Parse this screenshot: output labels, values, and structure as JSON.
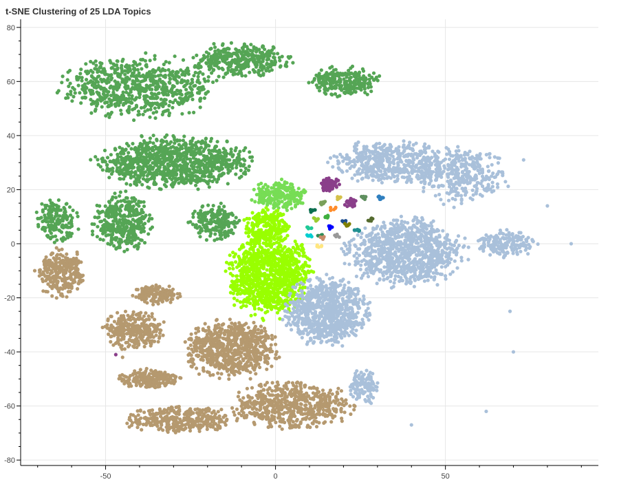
{
  "chart_data": {
    "type": "scatter",
    "title": "t-SNE Clustering of 25 LDA Topics",
    "xlabel": "",
    "ylabel": "",
    "xlim": [
      -75,
      95
    ],
    "ylim": [
      -82,
      83
    ],
    "x_ticks": [
      -50,
      0,
      50
    ],
    "y_ticks": [
      80,
      60,
      40,
      20,
      0,
      -20,
      -40,
      -60,
      -80
    ],
    "grid": true,
    "legend": "none",
    "point_count_note": "",
    "clusters": [
      {
        "color": "#55a555",
        "regions": [
          {
            "cx": -40,
            "cy": 58,
            "rx": 26,
            "ry": 13,
            "n": 700
          },
          {
            "cx": -10,
            "cy": 68,
            "rx": 16,
            "ry": 7,
            "n": 350
          },
          {
            "cx": 20,
            "cy": 60,
            "rx": 12,
            "ry": 6,
            "n": 260
          },
          {
            "cx": -30,
            "cy": 30,
            "rx": 26,
            "ry": 11,
            "n": 950
          },
          {
            "cx": -45,
            "cy": 8,
            "rx": 10,
            "ry": 12,
            "n": 380
          },
          {
            "cx": -64,
            "cy": 9,
            "rx": 7,
            "ry": 10,
            "n": 170
          },
          {
            "cx": -18,
            "cy": 8,
            "rx": 8,
            "ry": 8,
            "n": 200
          }
        ]
      },
      {
        "color": "#77dd55",
        "regions": [
          {
            "cx": 1,
            "cy": 18,
            "rx": 9,
            "ry": 6,
            "n": 230
          }
        ]
      },
      {
        "color": "#99ff00",
        "regions": [
          {
            "cx": -2,
            "cy": -12,
            "rx": 14,
            "ry": 17,
            "n": 1000
          },
          {
            "cx": -3,
            "cy": 6,
            "rx": 8,
            "ry": 8,
            "n": 240
          }
        ]
      },
      {
        "color": "#a9c0da",
        "regions": [
          {
            "cx": 35,
            "cy": 30,
            "rx": 22,
            "ry": 9,
            "n": 520
          },
          {
            "cx": 55,
            "cy": 25,
            "rx": 15,
            "ry": 12,
            "n": 300
          },
          {
            "cx": 38,
            "cy": -3,
            "rx": 20,
            "ry": 14,
            "n": 950
          },
          {
            "cx": 15,
            "cy": -25,
            "rx": 14,
            "ry": 14,
            "n": 800
          },
          {
            "cx": 68,
            "cy": 0,
            "rx": 10,
            "ry": 6,
            "n": 180
          },
          {
            "cx": 26,
            "cy": -53,
            "rx": 5,
            "ry": 7,
            "n": 110
          }
        ]
      },
      {
        "color": "#b5996f",
        "regions": [
          {
            "cx": -63,
            "cy": -11,
            "rx": 8,
            "ry": 10,
            "n": 280
          },
          {
            "cx": -13,
            "cy": -39,
            "rx": 16,
            "ry": 12,
            "n": 700
          },
          {
            "cx": -42,
            "cy": -32,
            "rx": 10,
            "ry": 8,
            "n": 280
          },
          {
            "cx": -35,
            "cy": -19,
            "rx": 8,
            "ry": 4,
            "n": 150
          },
          {
            "cx": -37,
            "cy": -50,
            "rx": 10,
            "ry": 4,
            "n": 200
          },
          {
            "cx": 5,
            "cy": -60,
            "rx": 20,
            "ry": 10,
            "n": 600
          },
          {
            "cx": -28,
            "cy": -65,
            "rx": 18,
            "ry": 6,
            "n": 340
          }
        ]
      },
      {
        "color": "#8a3f8a",
        "regions": [
          {
            "cx": 16,
            "cy": 22,
            "rx": 3,
            "ry": 3,
            "n": 80
          },
          {
            "cx": 22,
            "cy": 15,
            "rx": 2,
            "ry": 2,
            "n": 25
          }
        ]
      }
    ],
    "small_clusters": [
      {
        "color": "#0b6e4f",
        "x": 11,
        "y": 12,
        "n": 8
      },
      {
        "color": "#7aa05a",
        "x": 14,
        "y": 15,
        "n": 8
      },
      {
        "color": "#2f7fbf",
        "x": 31,
        "y": 17,
        "n": 10
      },
      {
        "color": "#5f8f5f",
        "x": 26,
        "y": 17,
        "n": 8
      },
      {
        "color": "#d4c14a",
        "x": 19,
        "y": 17,
        "n": 6
      },
      {
        "color": "#ff8c2a",
        "x": 17,
        "y": 13,
        "n": 6
      },
      {
        "color": "#1f4f8f",
        "x": 20,
        "y": 8,
        "n": 6
      },
      {
        "color": "#3faf3f",
        "x": 15,
        "y": 10,
        "n": 6
      },
      {
        "color": "#9acd32",
        "x": 12,
        "y": 9,
        "n": 6
      },
      {
        "color": "#20c997",
        "x": 10,
        "y": 6,
        "n": 6
      },
      {
        "color": "#0000ff",
        "x": 16,
        "y": 6,
        "n": 8
      },
      {
        "color": "#00ced1",
        "x": 10,
        "y": 3,
        "n": 6
      },
      {
        "color": "#808000",
        "x": 21,
        "y": 7,
        "n": 6
      },
      {
        "color": "#2e8b57",
        "x": 13,
        "y": 3,
        "n": 6
      },
      {
        "color": "#1f8f8f",
        "x": 24,
        "y": 5,
        "n": 6
      },
      {
        "color": "#c88a6a",
        "x": 14,
        "y": 2,
        "n": 6
      },
      {
        "color": "#999999",
        "x": 18,
        "y": 3,
        "n": 6
      },
      {
        "color": "#ffe680",
        "x": 13,
        "y": -1,
        "n": 6
      },
      {
        "color": "#556b2f",
        "x": 28,
        "y": 9,
        "n": 6
      }
    ],
    "stray_points": [
      {
        "color": "#8a3f8a",
        "x": -47,
        "y": -41
      },
      {
        "color": "#b5996f",
        "x": -45,
        "y": -42
      },
      {
        "color": "#a9c0da",
        "x": 87,
        "y": 0
      },
      {
        "color": "#a9c0da",
        "x": 80,
        "y": 14
      },
      {
        "color": "#a9c0da",
        "x": 73,
        "y": 31
      },
      {
        "color": "#a9c0da",
        "x": 70,
        "y": -40
      },
      {
        "color": "#a9c0da",
        "x": 62,
        "y": -62
      },
      {
        "color": "#a9c0da",
        "x": 40,
        "y": -67
      },
      {
        "color": "#a9c0da",
        "x": 69,
        "y": -25
      }
    ]
  }
}
